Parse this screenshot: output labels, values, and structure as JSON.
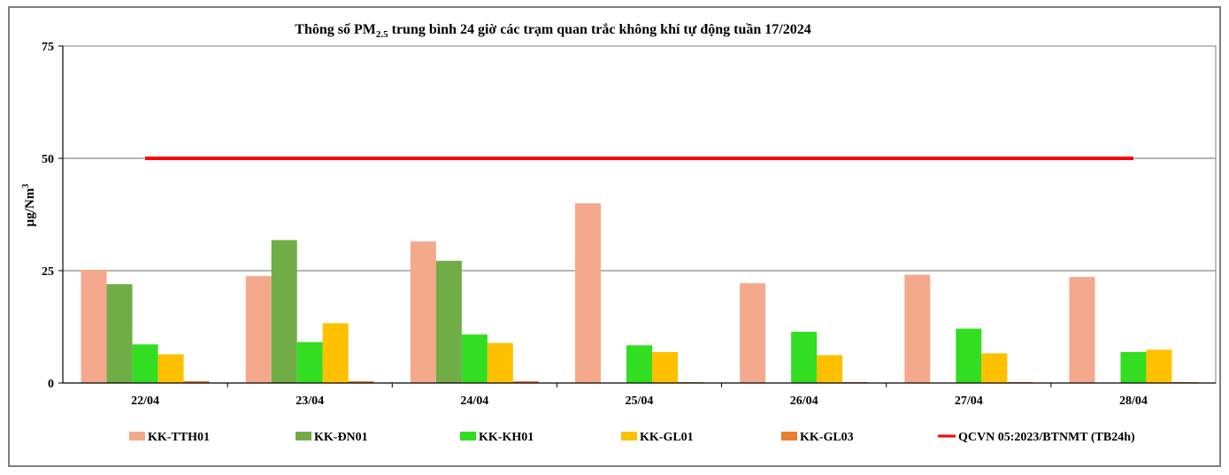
{
  "chart_data": {
    "type": "bar",
    "title_main": "Thông số PM",
    "title_sub": "2.5",
    "title_rest": " trung bình 24 giờ các trạm quan trắc không khí tự động tuần 17/2024",
    "ylabel_main": "µg/Nm",
    "ylabel_sup": "3",
    "ylim": [
      0,
      75
    ],
    "yticks": [
      "0",
      "25",
      "50",
      "75"
    ],
    "categories": [
      "22/04",
      "23/04",
      "24/04",
      "25/04",
      "26/04",
      "27/04",
      "28/04"
    ],
    "series": [
      {
        "name": "KK-TTH01",
        "color": "#f4a98c",
        "values": [
          25.2,
          23.8,
          31.5,
          40.0,
          22.2,
          24.1,
          23.6
        ]
      },
      {
        "name": "KK-ĐN01",
        "color": "#70ad47",
        "values": [
          22.0,
          31.8,
          27.2,
          0,
          0,
          0,
          0
        ]
      },
      {
        "name": "KK-KH01",
        "color": "#33dd22",
        "values": [
          8.6,
          9.1,
          10.8,
          8.4,
          11.4,
          12.1,
          6.9
        ]
      },
      {
        "name": "KK-GL01",
        "color": "#ffc000",
        "values": [
          6.4,
          13.3,
          8.9,
          6.9,
          6.2,
          6.6,
          7.4
        ]
      },
      {
        "name": "KK-GL03",
        "color": "#ed7d31",
        "values": [
          0.4,
          0.4,
          0.4,
          0.2,
          0.2,
          0.2,
          0.2
        ]
      }
    ],
    "reference_line": {
      "name": "QCVN 05:2023/BTNMT (TB24h)",
      "value": 50,
      "color": "#ff0000"
    },
    "grid": true,
    "legend": "bottom"
  }
}
